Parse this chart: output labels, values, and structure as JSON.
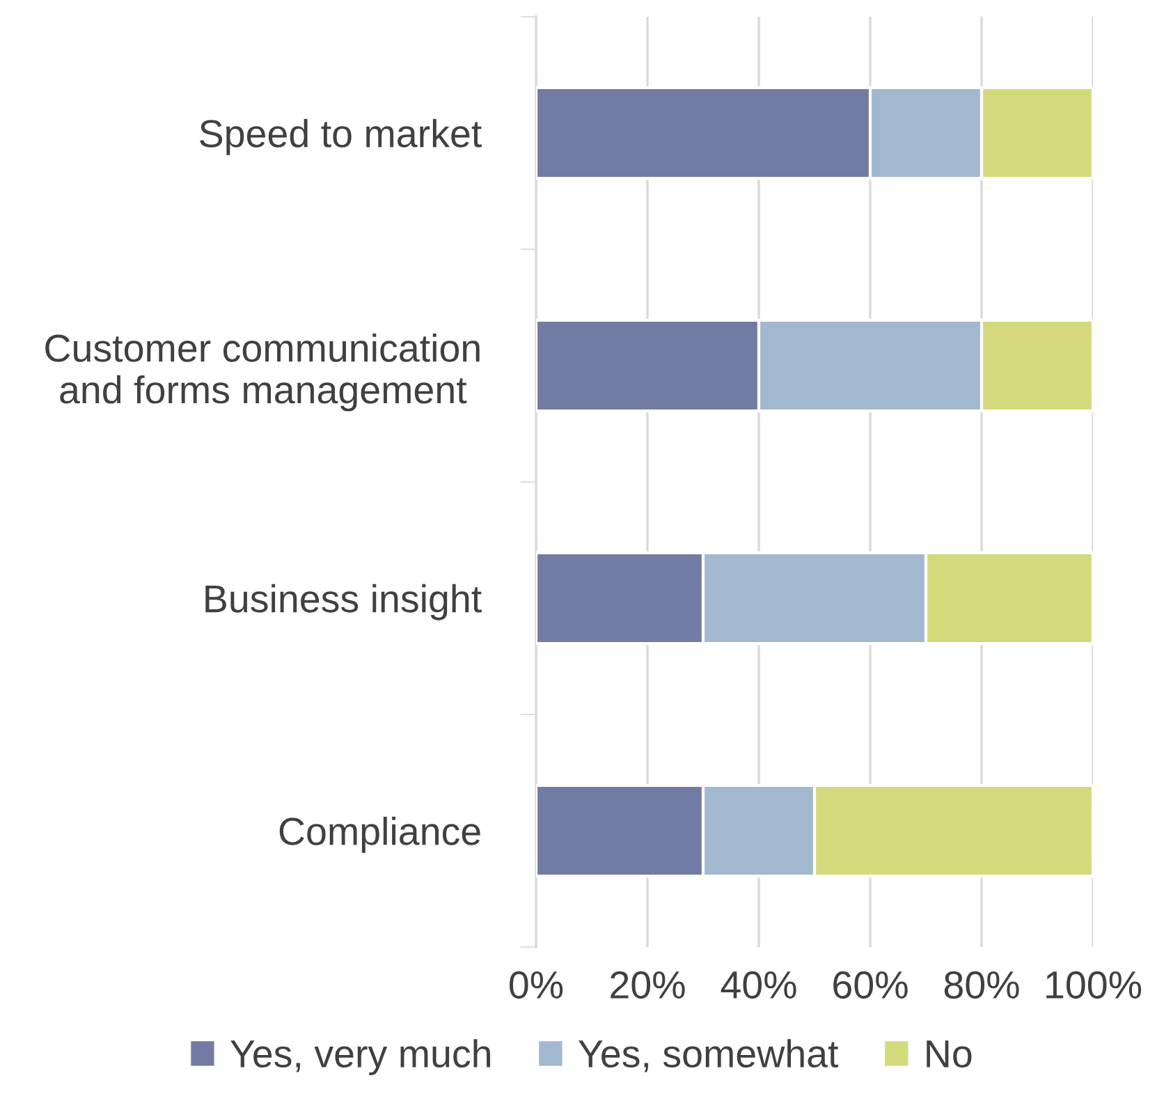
{
  "chart_data": {
    "type": "bar",
    "orientation": "horizontal",
    "stacked": true,
    "categories": [
      "Speed to market",
      "Customer communication\nand forms management",
      "Business insight",
      "Compliance"
    ],
    "series": [
      {
        "name": "Yes, very much",
        "color": "#717ba3",
        "values": [
          60,
          40,
          30,
          30
        ]
      },
      {
        "name": "Yes, somewhat",
        "color": "#a2b8ce",
        "values": [
          20,
          40,
          40,
          20
        ]
      },
      {
        "name": "No",
        "color": "#d4da7b",
        "values": [
          20,
          20,
          30,
          50
        ]
      }
    ],
    "xlim": [
      0,
      100
    ],
    "xticks": [
      {
        "value": 0,
        "label": "0%"
      },
      {
        "value": 20,
        "label": "20%"
      },
      {
        "value": 40,
        "label": "40%"
      },
      {
        "value": 60,
        "label": "60%"
      },
      {
        "value": 80,
        "label": "80%"
      },
      {
        "value": 100,
        "label": "100%"
      }
    ],
    "grid": "x",
    "legend": "bottom"
  }
}
